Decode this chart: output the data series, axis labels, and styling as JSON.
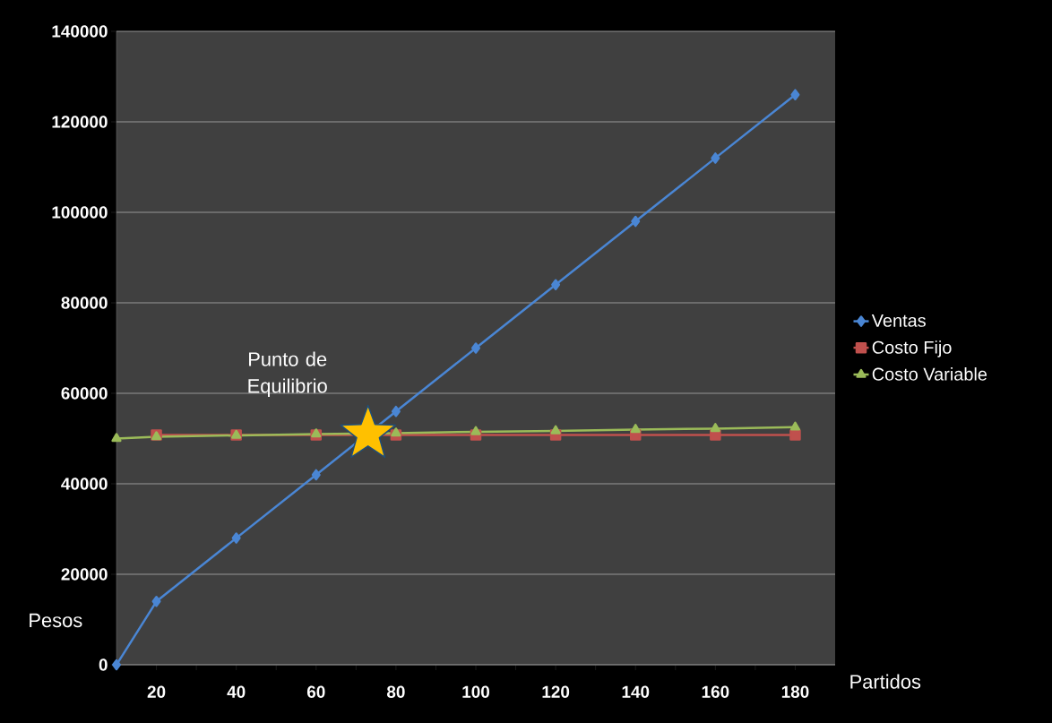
{
  "chart_data": {
    "type": "line",
    "xlabel": "Partidos",
    "ylabel": "Pesos",
    "xlim": [
      10,
      190
    ],
    "xticks": [
      {
        "value": 20,
        "label": "20"
      },
      {
        "value": 30,
        "label": null
      },
      {
        "value": 40,
        "label": "40"
      },
      {
        "value": 50,
        "label": null
      },
      {
        "value": 60,
        "label": "60"
      },
      {
        "value": 70,
        "label": null
      },
      {
        "value": 80,
        "label": "80"
      },
      {
        "value": 90,
        "label": null
      },
      {
        "value": 100,
        "label": "100"
      },
      {
        "value": 110,
        "label": null
      },
      {
        "value": 120,
        "label": "120"
      },
      {
        "value": 130,
        "label": null
      },
      {
        "value": 140,
        "label": "140"
      },
      {
        "value": 150,
        "label": null
      },
      {
        "value": 160,
        "label": "160"
      },
      {
        "value": 170,
        "label": null
      },
      {
        "value": 180,
        "label": "180"
      }
    ],
    "ylim": [
      0,
      140000
    ],
    "yticks": [
      0,
      20000,
      40000,
      60000,
      80000,
      100000,
      120000,
      140000
    ],
    "grid": "y",
    "legend": "right",
    "line_style": "solid",
    "series": [
      {
        "name": "Ventas",
        "color": "#4a86d4",
        "marker": "diamond",
        "x": [
          10,
          20,
          40,
          60,
          80,
          100,
          120,
          140,
          160,
          180
        ],
        "values": [
          0,
          14000,
          28000,
          42000,
          56000,
          70000,
          84000,
          98000,
          112000,
          126000
        ]
      },
      {
        "name": "Costo Fijo",
        "color": "#c0504d",
        "marker": "square",
        "x": [
          20,
          40,
          60,
          80,
          100,
          120,
          140,
          160,
          180
        ],
        "values": [
          50800,
          50800,
          50800,
          50800,
          50800,
          50800,
          50800,
          50800,
          50800
        ]
      },
      {
        "name": "Costo Variable",
        "color": "#9bbb59",
        "marker": "triangle",
        "x": [
          10,
          20,
          40,
          60,
          80,
          100,
          120,
          140,
          160,
          180
        ],
        "values": [
          50000,
          50400,
          50700,
          51000,
          51200,
          51500,
          51700,
          52000,
          52200,
          52500
        ]
      },
      {
        "type": "scatter",
        "color": "#ffc000",
        "marker": "star",
        "x": [
          73
        ],
        "values": [
          51000
        ]
      }
    ],
    "annotations": [
      {
        "text": "Punto de Equilibrio",
        "x": 73,
        "y": 51000
      }
    ]
  }
}
